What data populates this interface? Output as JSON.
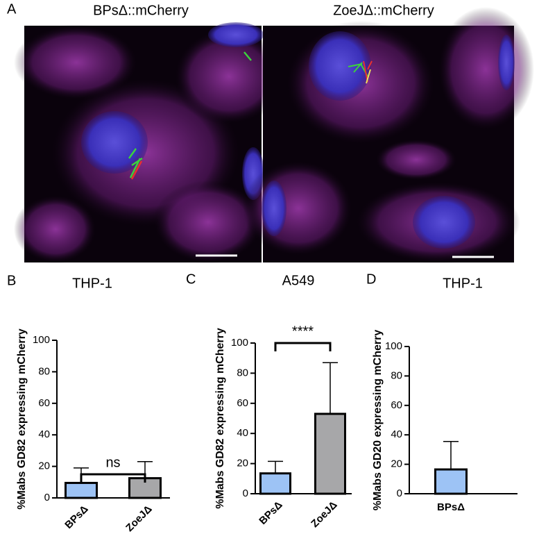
{
  "panel_a": {
    "label": "A",
    "images": [
      {
        "title": "BPsΔ::mCherry"
      },
      {
        "title": "ZoeJΔ::mCherry"
      }
    ]
  },
  "chart_data": [
    {
      "type": "bar",
      "panel": "B",
      "title": "THP-1",
      "y_label": "%Mabs GD82 expressing mCherry",
      "categories": [
        "BPsΔ",
        "ZoeJΔ"
      ],
      "values": [
        9.5,
        12.5
      ],
      "errors": [
        9.5,
        10.5
      ],
      "colors": [
        "#9dc3f5",
        "#a7a7a9"
      ],
      "ylim": [
        0,
        100
      ],
      "yticks": [
        0,
        20,
        40,
        60,
        80,
        100
      ],
      "x_label_rotation": -45,
      "annotation": "ns"
    },
    {
      "type": "bar",
      "panel": "C",
      "title": "A549",
      "y_label": "%Mabs GD82 expressing mCherry",
      "categories": [
        "BPsΔ",
        "ZoeJΔ"
      ],
      "values": [
        13.5,
        53
      ],
      "errors": [
        8,
        34
      ],
      "colors": [
        "#9dc3f5",
        "#a7a7a9"
      ],
      "ylim": [
        0,
        100
      ],
      "yticks": [
        0,
        20,
        40,
        60,
        80,
        100
      ],
      "x_label_rotation": -45,
      "annotation": "****"
    },
    {
      "type": "bar",
      "panel": "D",
      "title": "THP-1",
      "y_label": "%Mabs GD20 expressing mCherry",
      "categories": [
        "BPsΔ"
      ],
      "values": [
        16.5
      ],
      "errors": [
        19
      ],
      "colors": [
        "#9dc3f5"
      ],
      "ylim": [
        0,
        100
      ],
      "yticks": [
        0,
        20,
        40,
        60,
        80,
        100
      ],
      "x_label_rotation": 0
    }
  ]
}
